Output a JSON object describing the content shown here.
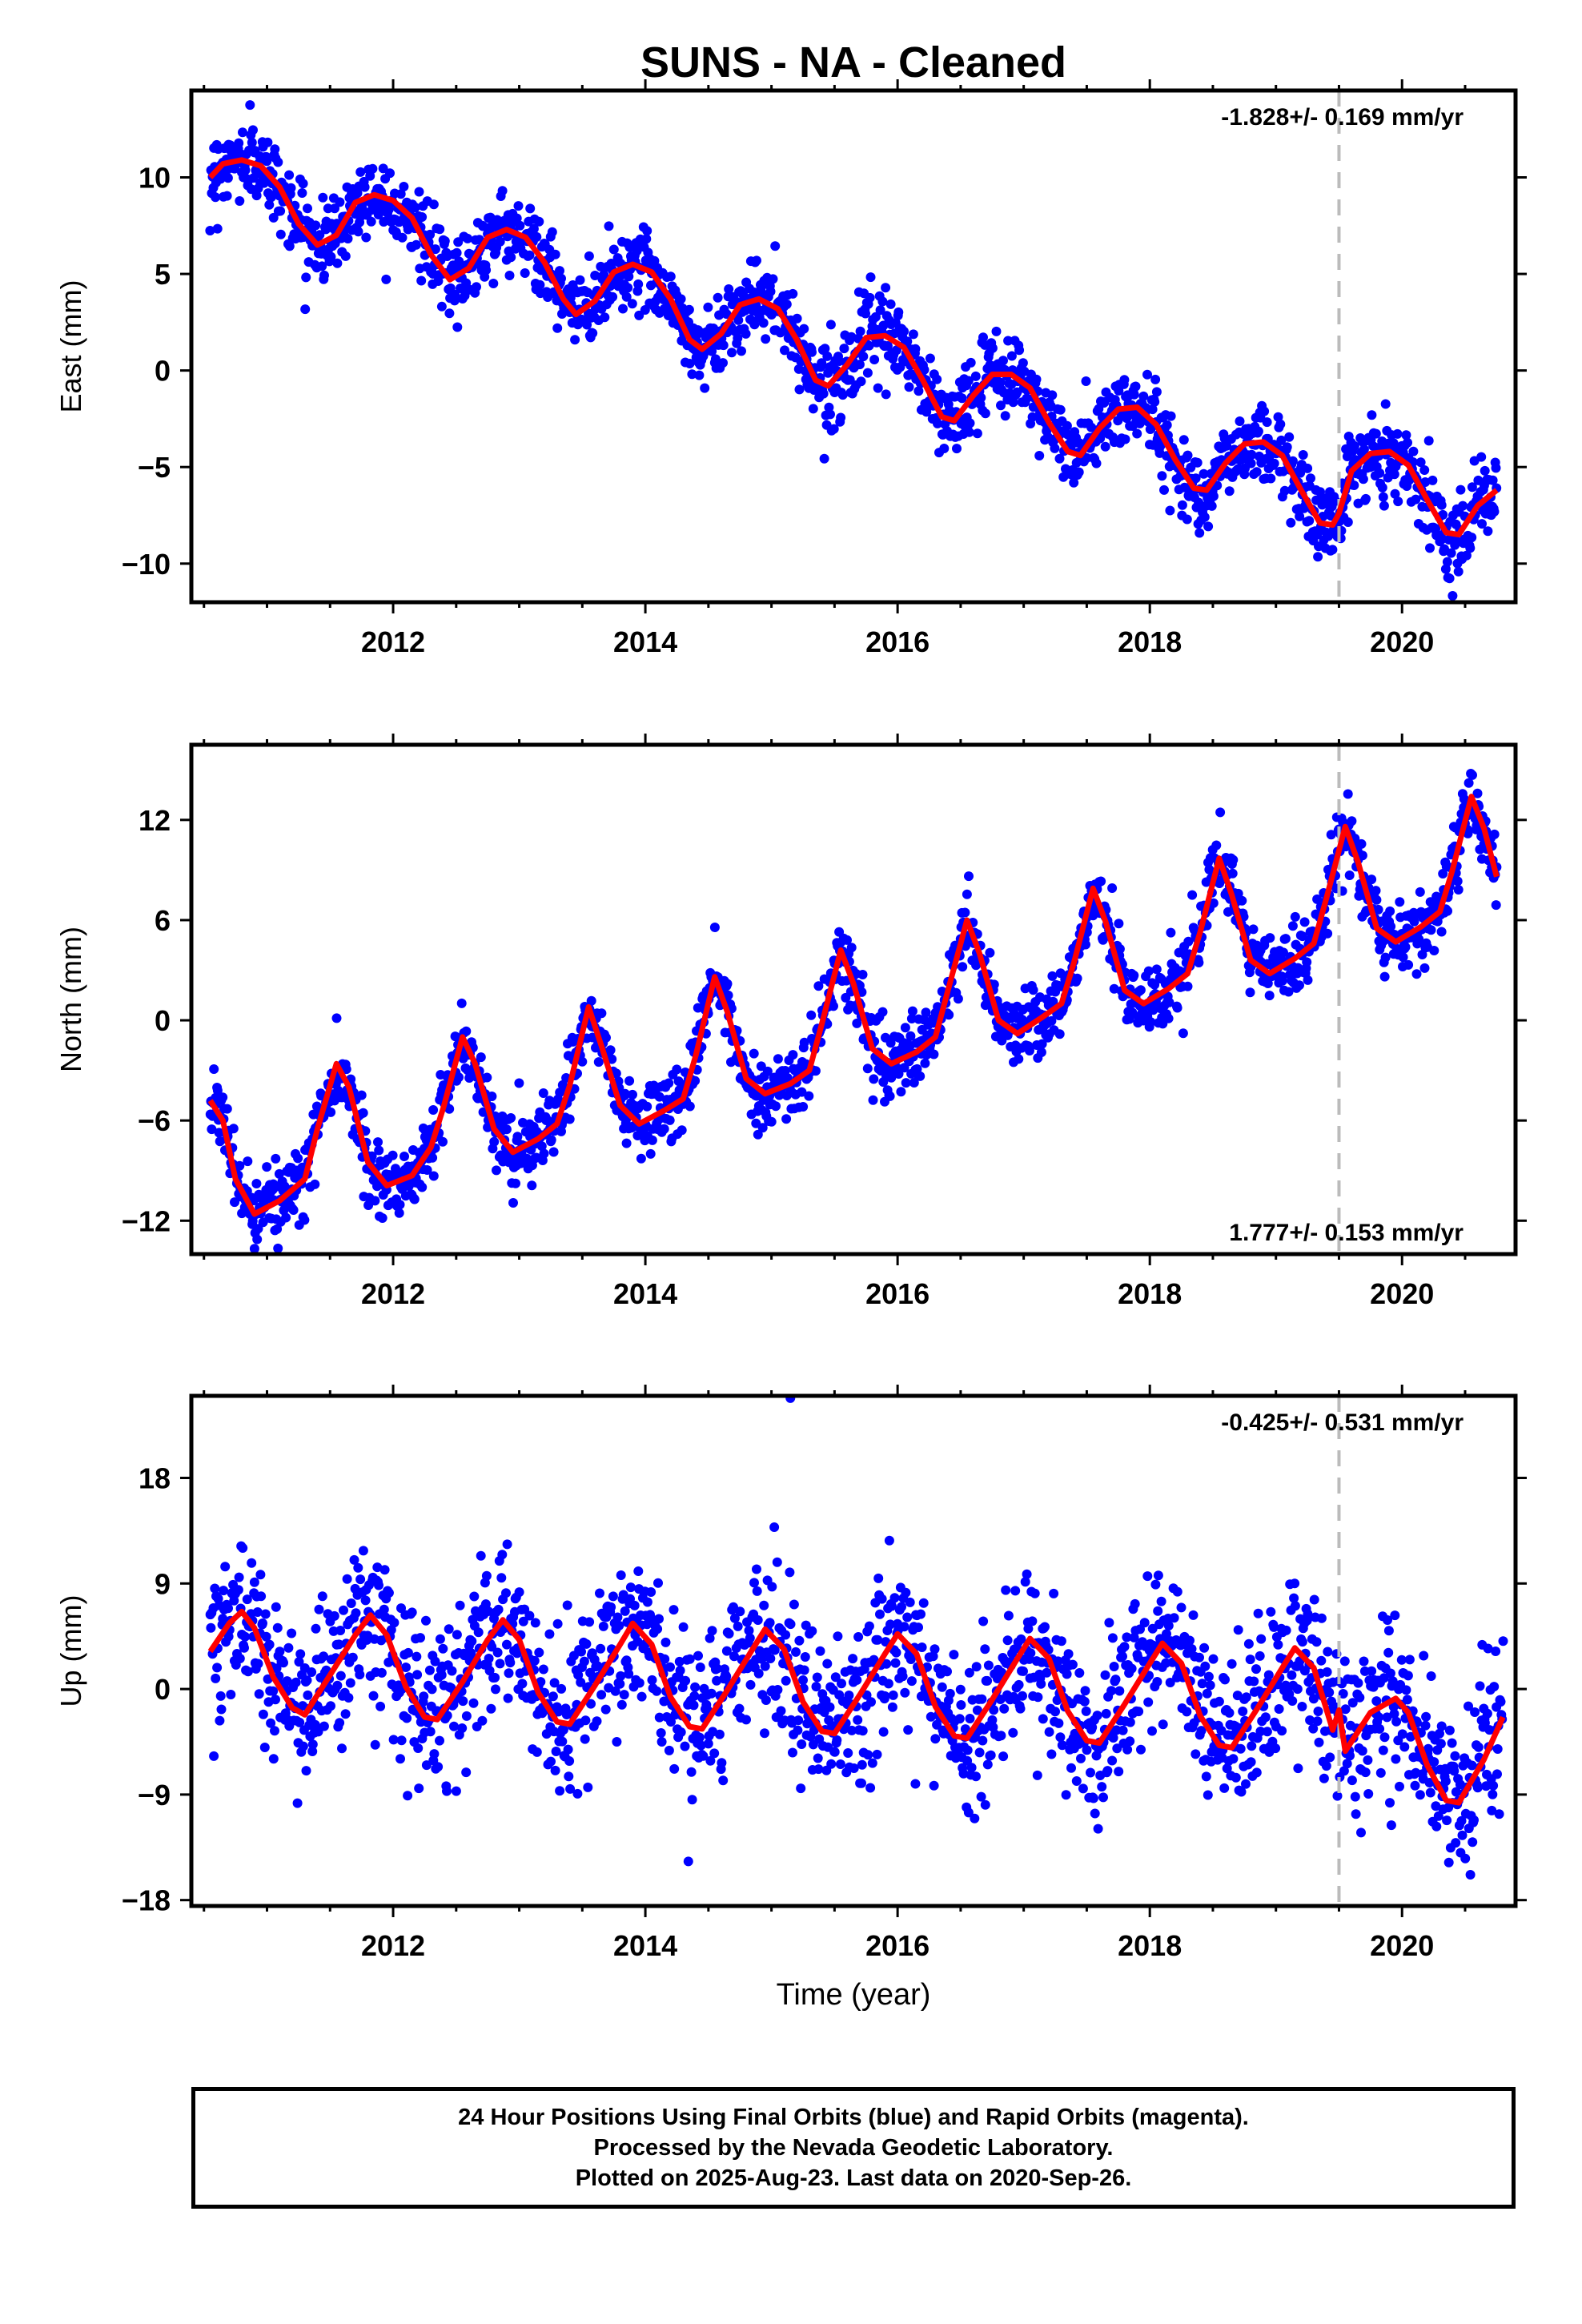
{
  "title": "SUNS  - NA - Cleaned",
  "colors": {
    "data": "#0000ff",
    "model": "#ff0000",
    "break": "#bbbbbb",
    "frame": "#000000"
  },
  "chart_data": [
    {
      "type": "scatter",
      "component": "east",
      "ylabel": "East (mm)",
      "xlabel": "",
      "rate_label": "-1.828+/- 0.169 mm/yr",
      "rate_position": "top-right",
      "xlim": [
        2010.4,
        2020.9
      ],
      "ylim": [
        -12,
        14.5
      ],
      "yticks": [
        10,
        5,
        0,
        -5,
        -10
      ],
      "ytick_labels": [
        "10",
        "5",
        "0",
        "−5",
        "−10"
      ],
      "xticks": [
        2012,
        2014,
        2016,
        2018,
        2020
      ],
      "xtick_labels": [
        "2012",
        "2014",
        "2016",
        "2018",
        "2020"
      ],
      "break_epochs": [
        2019.5
      ],
      "model_curve": [
        [
          2010.55,
          10.0
        ],
        [
          2010.65,
          10.7
        ],
        [
          2010.8,
          10.9
        ],
        [
          2010.95,
          10.6
        ],
        [
          2011.1,
          9.5
        ],
        [
          2011.25,
          7.6
        ],
        [
          2011.4,
          6.5
        ],
        [
          2011.55,
          7.0
        ],
        [
          2011.7,
          8.7
        ],
        [
          2011.85,
          9.1
        ],
        [
          2012.0,
          8.8
        ],
        [
          2012.15,
          7.9
        ],
        [
          2012.3,
          6.0
        ],
        [
          2012.45,
          4.7
        ],
        [
          2012.6,
          5.3
        ],
        [
          2012.75,
          6.9
        ],
        [
          2012.9,
          7.3
        ],
        [
          2013.05,
          6.9
        ],
        [
          2013.2,
          5.6
        ],
        [
          2013.35,
          3.7
        ],
        [
          2013.45,
          2.9
        ],
        [
          2013.6,
          3.6
        ],
        [
          2013.75,
          5.1
        ],
        [
          2013.9,
          5.5
        ],
        [
          2014.05,
          5.1
        ],
        [
          2014.2,
          3.7
        ],
        [
          2014.35,
          1.6
        ],
        [
          2014.45,
          1.1
        ],
        [
          2014.6,
          1.9
        ],
        [
          2014.75,
          3.4
        ],
        [
          2014.9,
          3.7
        ],
        [
          2015.05,
          3.2
        ],
        [
          2015.2,
          1.6
        ],
        [
          2015.35,
          -0.5
        ],
        [
          2015.45,
          -0.8
        ],
        [
          2015.6,
          0.3
        ],
        [
          2015.75,
          1.7
        ],
        [
          2015.9,
          1.8
        ],
        [
          2016.05,
          1.2
        ],
        [
          2016.2,
          -0.5
        ],
        [
          2016.35,
          -2.4
        ],
        [
          2016.45,
          -2.6
        ],
        [
          2016.6,
          -1.3
        ],
        [
          2016.75,
          -0.2
        ],
        [
          2016.9,
          -0.2
        ],
        [
          2017.05,
          -0.9
        ],
        [
          2017.2,
          -2.7
        ],
        [
          2017.35,
          -4.2
        ],
        [
          2017.45,
          -4.4
        ],
        [
          2017.6,
          -3.0
        ],
        [
          2017.75,
          -2.0
        ],
        [
          2017.9,
          -1.9
        ],
        [
          2018.05,
          -2.8
        ],
        [
          2018.2,
          -4.6
        ],
        [
          2018.35,
          -6.1
        ],
        [
          2018.45,
          -6.2
        ],
        [
          2018.6,
          -4.8
        ],
        [
          2018.75,
          -3.8
        ],
        [
          2018.9,
          -3.7
        ],
        [
          2019.05,
          -4.4
        ],
        [
          2019.2,
          -6.2
        ],
        [
          2019.35,
          -7.9
        ],
        [
          2019.45,
          -8.0
        ],
        [
          2019.5,
          -7.4
        ],
        [
          2019.6,
          -5.2
        ],
        [
          2019.75,
          -4.3
        ],
        [
          2019.9,
          -4.2
        ],
        [
          2020.05,
          -4.9
        ],
        [
          2020.2,
          -6.7
        ],
        [
          2020.35,
          -8.4
        ],
        [
          2020.45,
          -8.5
        ],
        [
          2020.6,
          -7.0
        ],
        [
          2020.75,
          -6.2
        ]
      ]
    },
    {
      "type": "scatter",
      "component": "north",
      "ylabel": "North (mm)",
      "xlabel": "",
      "rate_label": "1.777+/- 0.153 mm/yr",
      "rate_position": "bottom-right",
      "xlim": [
        2010.4,
        2020.9
      ],
      "ylim": [
        -14,
        16.5
      ],
      "yticks": [
        12,
        6,
        0,
        -6,
        -12
      ],
      "ytick_labels": [
        "12",
        "6",
        "0",
        "−6",
        "−12"
      ],
      "xticks": [
        2012,
        2014,
        2016,
        2018,
        2020
      ],
      "xtick_labels": [
        "2012",
        "2014",
        "2016",
        "2018",
        "2020"
      ],
      "break_epochs": [
        2019.5
      ],
      "model_curve": [
        [
          2010.55,
          -4.8
        ],
        [
          2010.65,
          -6.0
        ],
        [
          2010.75,
          -9.5
        ],
        [
          2010.9,
          -11.6
        ],
        [
          2011.1,
          -10.8
        ],
        [
          2011.3,
          -9.5
        ],
        [
          2011.4,
          -6.5
        ],
        [
          2011.55,
          -2.6
        ],
        [
          2011.65,
          -4.0
        ],
        [
          2011.8,
          -8.5
        ],
        [
          2011.95,
          -9.9
        ],
        [
          2012.15,
          -9.3
        ],
        [
          2012.3,
          -7.6
        ],
        [
          2012.4,
          -5.2
        ],
        [
          2012.55,
          -1.0
        ],
        [
          2012.65,
          -2.6
        ],
        [
          2012.8,
          -6.5
        ],
        [
          2012.95,
          -7.9
        ],
        [
          2013.15,
          -7.1
        ],
        [
          2013.3,
          -6.2
        ],
        [
          2013.4,
          -3.9
        ],
        [
          2013.55,
          0.8
        ],
        [
          2013.65,
          -1.5
        ],
        [
          2013.8,
          -5.1
        ],
        [
          2013.95,
          -6.2
        ],
        [
          2014.15,
          -5.4
        ],
        [
          2014.3,
          -4.7
        ],
        [
          2014.4,
          -2.1
        ],
        [
          2014.55,
          2.6
        ],
        [
          2014.65,
          0.5
        ],
        [
          2014.8,
          -3.5
        ],
        [
          2014.95,
          -4.4
        ],
        [
          2015.15,
          -3.8
        ],
        [
          2015.3,
          -3.0
        ],
        [
          2015.4,
          -0.2
        ],
        [
          2015.55,
          4.2
        ],
        [
          2015.65,
          2.2
        ],
        [
          2015.8,
          -1.7
        ],
        [
          2015.95,
          -2.6
        ],
        [
          2016.15,
          -1.9
        ],
        [
          2016.3,
          -1.0
        ],
        [
          2016.4,
          1.8
        ],
        [
          2016.55,
          6.0
        ],
        [
          2016.65,
          4.0
        ],
        [
          2016.8,
          0.0
        ],
        [
          2016.95,
          -0.8
        ],
        [
          2017.15,
          0.2
        ],
        [
          2017.3,
          1.0
        ],
        [
          2017.4,
          3.5
        ],
        [
          2017.55,
          7.9
        ],
        [
          2017.65,
          5.9
        ],
        [
          2017.8,
          1.8
        ],
        [
          2017.95,
          1.0
        ],
        [
          2018.15,
          1.9
        ],
        [
          2018.3,
          2.8
        ],
        [
          2018.4,
          5.3
        ],
        [
          2018.55,
          9.7
        ],
        [
          2018.65,
          7.5
        ],
        [
          2018.8,
          3.6
        ],
        [
          2018.95,
          2.8
        ],
        [
          2019.15,
          3.7
        ],
        [
          2019.3,
          4.6
        ],
        [
          2019.4,
          7.3
        ],
        [
          2019.55,
          11.6
        ],
        [
          2019.65,
          9.5
        ],
        [
          2019.8,
          5.5
        ],
        [
          2019.95,
          4.7
        ],
        [
          2020.15,
          5.6
        ],
        [
          2020.3,
          6.5
        ],
        [
          2020.4,
          9.0
        ],
        [
          2020.55,
          13.4
        ],
        [
          2020.65,
          11.5
        ],
        [
          2020.75,
          8.6
        ]
      ]
    },
    {
      "type": "scatter",
      "component": "up",
      "ylabel": "Up (mm)",
      "xlabel": "Time (year)",
      "rate_label": "-0.425+/- 0.531 mm/yr",
      "rate_position": "top-right",
      "xlim": [
        2010.4,
        2020.9
      ],
      "ylim": [
        -18.5,
        25
      ],
      "yticks": [
        18,
        9,
        0,
        -9,
        -18
      ],
      "ytick_labels": [
        "18",
        "9",
        "0",
        "−9",
        "−18"
      ],
      "xticks": [
        2012,
        2014,
        2016,
        2018,
        2020
      ],
      "xtick_labels": [
        "2012",
        "2014",
        "2016",
        "2018",
        "2020"
      ],
      "break_epochs": [
        2019.5
      ],
      "model_curve": [
        [
          2010.55,
          3.2
        ],
        [
          2010.7,
          5.6
        ],
        [
          2010.8,
          6.6
        ],
        [
          2010.9,
          5.2
        ],
        [
          2011.05,
          1.0
        ],
        [
          2011.2,
          -1.6
        ],
        [
          2011.3,
          -2.2
        ],
        [
          2011.5,
          1.2
        ],
        [
          2011.7,
          4.6
        ],
        [
          2011.82,
          6.3
        ],
        [
          2011.95,
          4.6
        ],
        [
          2012.1,
          0.2
        ],
        [
          2012.25,
          -2.4
        ],
        [
          2012.35,
          -2.6
        ],
        [
          2012.55,
          0.6
        ],
        [
          2012.75,
          4.2
        ],
        [
          2012.87,
          5.9
        ],
        [
          2013.0,
          4.2
        ],
        [
          2013.15,
          -0.3
        ],
        [
          2013.3,
          -2.8
        ],
        [
          2013.4,
          -3.0
        ],
        [
          2013.6,
          0.3
        ],
        [
          2013.8,
          3.8
        ],
        [
          2013.9,
          5.6
        ],
        [
          2014.05,
          3.8
        ],
        [
          2014.2,
          -0.7
        ],
        [
          2014.35,
          -3.2
        ],
        [
          2014.45,
          -3.4
        ],
        [
          2014.65,
          -0.1
        ],
        [
          2014.85,
          3.4
        ],
        [
          2014.95,
          5.1
        ],
        [
          2015.1,
          3.4
        ],
        [
          2015.25,
          -1.1
        ],
        [
          2015.4,
          -3.6
        ],
        [
          2015.5,
          -3.8
        ],
        [
          2015.7,
          -0.5
        ],
        [
          2015.9,
          3.0
        ],
        [
          2016.0,
          4.7
        ],
        [
          2016.15,
          3.0
        ],
        [
          2016.3,
          -1.5
        ],
        [
          2016.45,
          -4.0
        ],
        [
          2016.55,
          -4.2
        ],
        [
          2016.75,
          -0.9
        ],
        [
          2016.95,
          2.6
        ],
        [
          2017.05,
          4.3
        ],
        [
          2017.2,
          2.6
        ],
        [
          2017.35,
          -1.9
        ],
        [
          2017.5,
          -4.4
        ],
        [
          2017.6,
          -4.6
        ],
        [
          2017.8,
          -1.3
        ],
        [
          2018.0,
          2.2
        ],
        [
          2018.1,
          3.9
        ],
        [
          2018.25,
          2.2
        ],
        [
          2018.4,
          -2.3
        ],
        [
          2018.55,
          -4.8
        ],
        [
          2018.65,
          -5.0
        ],
        [
          2018.85,
          -1.7
        ],
        [
          2019.05,
          1.8
        ],
        [
          2019.15,
          3.5
        ],
        [
          2019.3,
          1.8
        ],
        [
          2019.45,
          -3.5
        ],
        [
          2019.5,
          -1.8
        ],
        [
          2019.55,
          -5.3
        ],
        [
          2019.75,
          -2.0
        ],
        [
          2019.95,
          -0.8
        ],
        [
          2020.05,
          -2.0
        ],
        [
          2020.2,
          -6.5
        ],
        [
          2020.35,
          -9.5
        ],
        [
          2020.45,
          -9.7
        ],
        [
          2020.65,
          -6.0
        ],
        [
          2020.8,
          -2.4
        ]
      ],
      "outliers": [
        [
          2015.15,
          24.8
        ]
      ]
    }
  ],
  "footer": {
    "line1": "24 Hour Positions Using Final Orbits (blue) and Rapid Orbits (magenta).",
    "line2": "Processed by the Nevada Geodetic Laboratory.",
    "line3": "Plotted on 2025-Aug-23. Last data on 2020-Sep-26."
  }
}
